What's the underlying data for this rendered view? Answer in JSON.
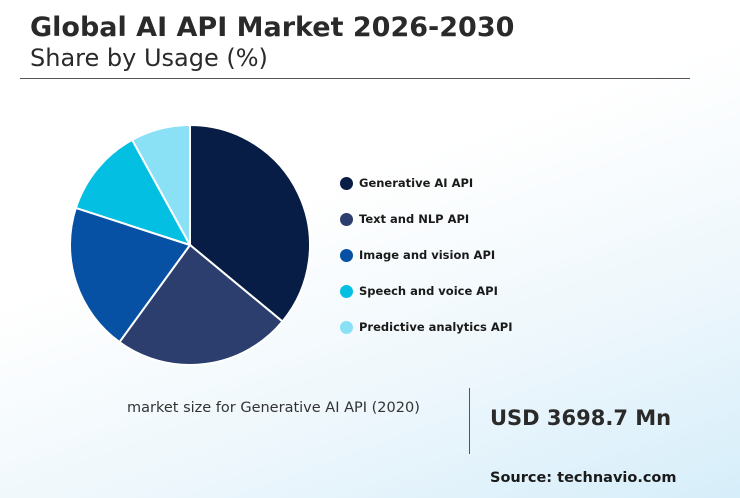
{
  "header": {
    "title": "Global AI API Market 2026-2030",
    "subtitle": "Share by Usage (%)"
  },
  "chart_data": {
    "type": "pie",
    "title": "Global AI API Market 2026-2030",
    "subtitle": "Share by Usage (%)",
    "legend_position": "right",
    "series": [
      {
        "name": "Generative AI API",
        "value": 36,
        "color": "#081d45"
      },
      {
        "name": "Text and NLP API",
        "value": 24,
        "color": "#2b3e6e"
      },
      {
        "name": "Image and vision API",
        "value": 20,
        "color": "#0751a4"
      },
      {
        "name": "Speech and voice API",
        "value": 12,
        "color": "#03c0e3"
      },
      {
        "name": "Predictive analytics API",
        "value": 8,
        "color": "#8ae0f5"
      }
    ]
  },
  "footer": {
    "caption": "market size for Generative AI API (2020)",
    "value": "USD 3698.7 Mn",
    "source": "Source: technavio.com"
  }
}
